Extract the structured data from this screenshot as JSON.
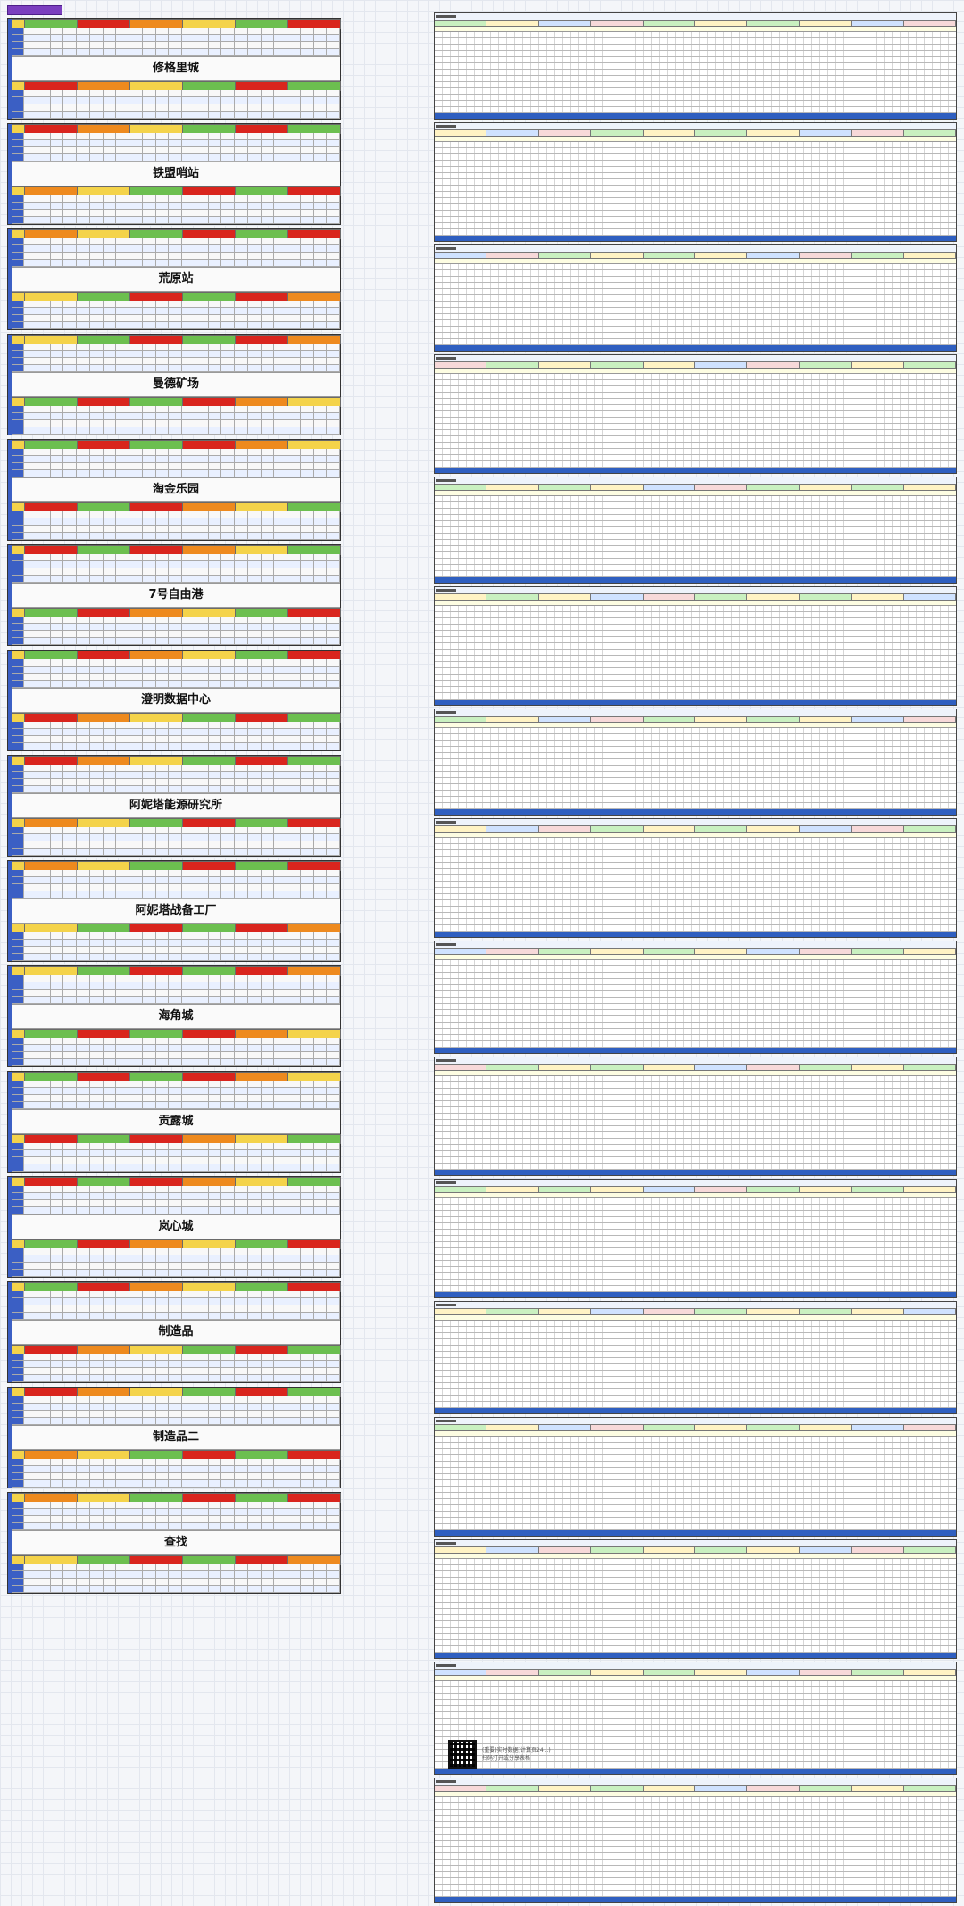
{
  "colors": {
    "cell_green": "#6cbf4f",
    "cell_red": "#d9251d",
    "cell_orange": "#ee8a1e",
    "cell_yellow": "#f4d34a",
    "cell_blue": "#3b5fc4",
    "cell_lightblue": "#9cc3ea",
    "header_band": "#c9f0c0",
    "total_row": "#2f5fc0",
    "top_badge": "#7b3fbf"
  },
  "cities": [
    {
      "name": "修格里城"
    },
    {
      "name": "铁盟哨站"
    },
    {
      "name": "荒原站"
    },
    {
      "name": "曼德矿场"
    },
    {
      "name": "淘金乐园"
    },
    {
      "name": "7号自由港"
    },
    {
      "name": "澄明数据中心"
    },
    {
      "name": "阿妮塔能源研究所"
    },
    {
      "name": "阿妮塔战备工厂"
    },
    {
      "name": "海角城"
    },
    {
      "name": "贡露城"
    },
    {
      "name": "岚心城"
    },
    {
      "name": "制造品"
    },
    {
      "name": "制造品二"
    },
    {
      "name": "查找"
    }
  ],
  "footer": {
    "line1": "(重要)实时数据(计算页24...)",
    "line2": "扫码打开或分享表格"
  }
}
